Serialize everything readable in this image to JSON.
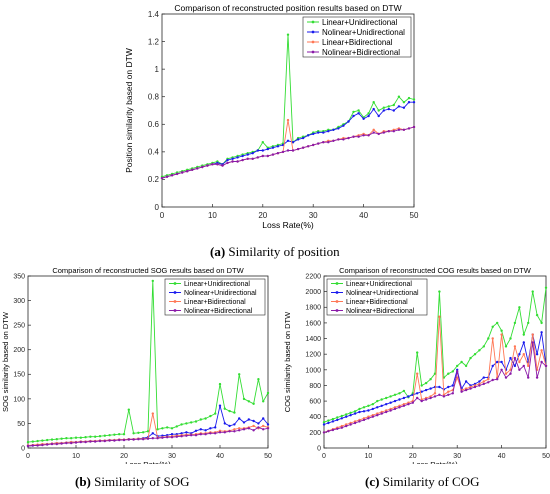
{
  "captions": [
    {
      "label": "(a)",
      "text": " Similarity of position"
    },
    {
      "label": "(b)",
      "text": " Similarity of SOG"
    },
    {
      "label": "(c)",
      "text": " Similarity of COG"
    }
  ],
  "chart_data": [
    {
      "type": "line",
      "title": "Comparison of reconstructed position results based on DTW",
      "xlabel": "Loss Rate(%)",
      "ylabel": "Position similarity based on DTW",
      "xlim": [
        0,
        50
      ],
      "ylim": [
        0,
        1.4
      ],
      "xticks": [
        0,
        10,
        20,
        30,
        40,
        50
      ],
      "xtick_labels": [
        "0",
        "10",
        "20",
        "30",
        "40",
        "50"
      ],
      "yticks": [
        0,
        0.2,
        0.4,
        0.6,
        0.8,
        1,
        1.2,
        1.4
      ],
      "ytick_labels": [
        "0",
        "0.2",
        "0.4",
        "0.6",
        "0.8",
        "1",
        "1.2",
        "1.4"
      ],
      "legend": "top-right",
      "x": [
        0,
        1,
        2,
        3,
        4,
        5,
        6,
        7,
        8,
        9,
        10,
        11,
        12,
        13,
        14,
        15,
        16,
        17,
        18,
        19,
        20,
        21,
        22,
        23,
        24,
        25,
        26,
        27,
        28,
        29,
        30,
        31,
        32,
        33,
        34,
        35,
        36,
        37,
        38,
        39,
        40,
        41,
        42,
        43,
        44,
        45,
        46,
        47,
        48,
        49,
        50
      ],
      "series": [
        {
          "name": "Linear+Unidirectional",
          "color": "#33dd33",
          "values": [
            0.22,
            0.23,
            0.24,
            0.25,
            0.26,
            0.27,
            0.28,
            0.29,
            0.3,
            0.31,
            0.32,
            0.33,
            0.31,
            0.35,
            0.36,
            0.37,
            0.38,
            0.39,
            0.4,
            0.41,
            0.47,
            0.43,
            0.44,
            0.45,
            0.46,
            1.25,
            0.47,
            0.5,
            0.51,
            0.52,
            0.54,
            0.55,
            0.55,
            0.56,
            0.56,
            0.58,
            0.6,
            0.62,
            0.69,
            0.7,
            0.65,
            0.68,
            0.76,
            0.7,
            0.72,
            0.73,
            0.74,
            0.8,
            0.76,
            0.79,
            0.78
          ]
        },
        {
          "name": "Nolinear+Unidirectional",
          "color": "#1a1aee",
          "values": [
            0.21,
            0.22,
            0.23,
            0.24,
            0.25,
            0.26,
            0.27,
            0.28,
            0.29,
            0.3,
            0.31,
            0.32,
            0.31,
            0.34,
            0.35,
            0.36,
            0.37,
            0.38,
            0.39,
            0.41,
            0.41,
            0.42,
            0.43,
            0.44,
            0.45,
            0.48,
            0.47,
            0.49,
            0.5,
            0.52,
            0.53,
            0.54,
            0.54,
            0.55,
            0.56,
            0.57,
            0.59,
            0.62,
            0.66,
            0.68,
            0.64,
            0.66,
            0.71,
            0.66,
            0.7,
            0.71,
            0.7,
            0.73,
            0.72,
            0.76,
            0.76
          ]
        },
        {
          "name": "Linear+Bidirectional",
          "color": "#ff7755",
          "values": [
            0.21,
            0.22,
            0.23,
            0.24,
            0.25,
            0.26,
            0.27,
            0.28,
            0.29,
            0.3,
            0.31,
            0.31,
            0.3,
            0.32,
            0.33,
            0.33,
            0.34,
            0.35,
            0.35,
            0.36,
            0.37,
            0.37,
            0.38,
            0.39,
            0.4,
            0.63,
            0.41,
            0.42,
            0.43,
            0.44,
            0.45,
            0.46,
            0.47,
            0.48,
            0.48,
            0.49,
            0.5,
            0.5,
            0.51,
            0.52,
            0.53,
            0.52,
            0.56,
            0.53,
            0.55,
            0.55,
            0.56,
            0.57,
            0.56,
            0.57,
            0.58
          ]
        },
        {
          "name": "Nolinear+Bidirectional",
          "color": "#8a1aa8",
          "values": [
            0.21,
            0.22,
            0.23,
            0.24,
            0.25,
            0.26,
            0.27,
            0.28,
            0.29,
            0.3,
            0.31,
            0.31,
            0.3,
            0.32,
            0.33,
            0.33,
            0.34,
            0.35,
            0.35,
            0.36,
            0.37,
            0.37,
            0.38,
            0.39,
            0.4,
            0.41,
            0.41,
            0.42,
            0.43,
            0.44,
            0.45,
            0.46,
            0.47,
            0.47,
            0.48,
            0.49,
            0.49,
            0.5,
            0.51,
            0.51,
            0.52,
            0.52,
            0.54,
            0.53,
            0.54,
            0.55,
            0.55,
            0.56,
            0.56,
            0.57,
            0.58
          ]
        }
      ]
    },
    {
      "type": "line",
      "title": "Comparison of reconstructed SOG results based on DTW",
      "xlabel": "Loss Rate(%)",
      "ylabel": "SOG similarity based on DTW",
      "xlim": [
        0,
        50
      ],
      "ylim": [
        0,
        350
      ],
      "xticks": [
        0,
        10,
        20,
        30,
        40,
        50
      ],
      "xtick_labels": [
        "0",
        "10",
        "20",
        "30",
        "40",
        "50"
      ],
      "yticks": [
        0,
        50,
        100,
        150,
        200,
        250,
        300,
        350
      ],
      "ytick_labels": [
        "0",
        "50",
        "100",
        "150",
        "200",
        "250",
        "300",
        "350"
      ],
      "legend": "top-right",
      "x": [
        0,
        1,
        2,
        3,
        4,
        5,
        6,
        7,
        8,
        9,
        10,
        11,
        12,
        13,
        14,
        15,
        16,
        17,
        18,
        19,
        20,
        21,
        22,
        23,
        24,
        25,
        26,
        27,
        28,
        29,
        30,
        31,
        32,
        33,
        34,
        35,
        36,
        37,
        38,
        39,
        40,
        41,
        42,
        43,
        44,
        45,
        46,
        47,
        48,
        49,
        50
      ],
      "series": [
        {
          "name": "Linear+Unidirectional",
          "color": "#33dd33",
          "values": [
            12,
            13,
            14,
            15,
            16,
            17,
            18,
            19,
            20,
            20,
            21,
            21,
            22,
            23,
            23,
            24,
            25,
            26,
            27,
            28,
            28,
            78,
            30,
            31,
            32,
            34,
            340,
            38,
            40,
            42,
            40,
            44,
            48,
            50,
            52,
            54,
            58,
            60,
            65,
            70,
            130,
            80,
            75,
            72,
            150,
            100,
            95,
            90,
            140,
            95,
            112
          ]
        },
        {
          "name": "Nolinear+Unidirectional",
          "color": "#1a1aee",
          "values": [
            4,
            5,
            6,
            7,
            8,
            9,
            10,
            10,
            11,
            12,
            12,
            13,
            13,
            14,
            14,
            15,
            15,
            16,
            16,
            17,
            17,
            18,
            18,
            19,
            20,
            22,
            30,
            24,
            25,
            26,
            28,
            28,
            30,
            32,
            30,
            35,
            38,
            36,
            40,
            42,
            86,
            50,
            45,
            48,
            60,
            52,
            58,
            55,
            50,
            60,
            48
          ]
        },
        {
          "name": "Linear+Bidirectional",
          "color": "#ff7755",
          "values": [
            5,
            6,
            7,
            8,
            8,
            9,
            10,
            10,
            11,
            12,
            12,
            13,
            13,
            14,
            14,
            15,
            15,
            16,
            16,
            17,
            17,
            18,
            18,
            19,
            19,
            20,
            70,
            21,
            22,
            23,
            24,
            25,
            26,
            27,
            27,
            28,
            30,
            30,
            32,
            32,
            35,
            34,
            35,
            38,
            40,
            40,
            42,
            45,
            40,
            45,
            42
          ]
        },
        {
          "name": "Nolinear+Bidirectional",
          "color": "#8a1aa8",
          "values": [
            4,
            5,
            5,
            6,
            7,
            8,
            8,
            9,
            10,
            10,
            11,
            12,
            12,
            13,
            13,
            14,
            14,
            15,
            15,
            16,
            16,
            17,
            17,
            18,
            18,
            19,
            20,
            20,
            21,
            22,
            22,
            23,
            24,
            25,
            26,
            26,
            28,
            28,
            30,
            30,
            32,
            32,
            34,
            34,
            36,
            38,
            40,
            36,
            42,
            38,
            40
          ]
        }
      ]
    },
    {
      "type": "line",
      "title": "Comparison of reconstructed COG results based on DTW",
      "xlabel": "Loss Rate(%)",
      "ylabel": "COG similarity based on DTW",
      "xlim": [
        0,
        50
      ],
      "ylim": [
        0,
        2200
      ],
      "xticks": [
        0,
        10,
        20,
        30,
        40,
        50
      ],
      "xtick_labels": [
        "0",
        "10",
        "20",
        "30",
        "40",
        "50"
      ],
      "yticks": [
        0,
        200,
        400,
        600,
        800,
        1000,
        1200,
        1400,
        1600,
        1800,
        2000,
        2200
      ],
      "ytick_labels": [
        "0",
        "200",
        "400",
        "600",
        "800",
        "1000",
        "1200",
        "1400",
        "1600",
        "1800",
        "2000",
        "2200"
      ],
      "legend": "top-left",
      "x": [
        0,
        1,
        2,
        3,
        4,
        5,
        6,
        7,
        8,
        9,
        10,
        11,
        12,
        13,
        14,
        15,
        16,
        17,
        18,
        19,
        20,
        21,
        22,
        23,
        24,
        25,
        26,
        27,
        28,
        29,
        30,
        31,
        32,
        33,
        34,
        35,
        36,
        37,
        38,
        39,
        40,
        41,
        42,
        43,
        44,
        45,
        46,
        47,
        48,
        49,
        50
      ],
      "series": [
        {
          "name": "Linear+Unidirectional",
          "color": "#33dd33",
          "values": [
            330,
            350,
            370,
            390,
            410,
            430,
            450,
            470,
            500,
            520,
            540,
            560,
            600,
            620,
            640,
            660,
            680,
            700,
            730,
            650,
            700,
            1220,
            800,
            830,
            880,
            950,
            2000,
            900,
            950,
            980,
            1050,
            1100,
            1050,
            1150,
            1200,
            1250,
            1300,
            1400,
            1550,
            1600,
            1500,
            1300,
            1400,
            1600,
            1800,
            1450,
            1600,
            2000,
            1700,
            1600,
            2050
          ]
        },
        {
          "name": "Nolinear+Unidirectional",
          "color": "#1a1aee",
          "values": [
            300,
            320,
            340,
            360,
            380,
            400,
            420,
            440,
            460,
            470,
            480,
            500,
            520,
            540,
            560,
            580,
            600,
            620,
            640,
            660,
            680,
            700,
            720,
            740,
            760,
            780,
            780,
            750,
            780,
            800,
            1000,
            760,
            850,
            800,
            820,
            850,
            900,
            900,
            1050,
            1100,
            1100,
            1000,
            1150,
            1050,
            1200,
            1350,
            1100,
            1450,
            1200,
            1480,
            1050
          ]
        },
        {
          "name": "Linear+Bidirectional",
          "color": "#ff7755",
          "values": [
            200,
            220,
            240,
            260,
            280,
            300,
            320,
            340,
            360,
            380,
            400,
            420,
            440,
            460,
            480,
            500,
            520,
            540,
            560,
            580,
            600,
            950,
            620,
            640,
            660,
            700,
            1680,
            680,
            720,
            740,
            900,
            740,
            760,
            780,
            800,
            820,
            850,
            880,
            1400,
            900,
            1450,
            950,
            1000,
            1300,
            1100,
            1200,
            1050,
            1450,
            1000,
            1250,
            1050
          ]
        },
        {
          "name": "Nolinear+Bidirectional",
          "color": "#8a1aa8",
          "values": [
            200,
            215,
            230,
            245,
            260,
            280,
            300,
            320,
            340,
            360,
            380,
            400,
            420,
            440,
            460,
            480,
            500,
            520,
            540,
            560,
            580,
            640,
            600,
            620,
            640,
            660,
            680,
            660,
            680,
            700,
            980,
            720,
            740,
            760,
            780,
            800,
            820,
            840,
            870,
            880,
            1000,
            900,
            950,
            1150,
            1000,
            1050,
            900,
            1350,
            900,
            1100,
            1050
          ]
        }
      ]
    }
  ]
}
